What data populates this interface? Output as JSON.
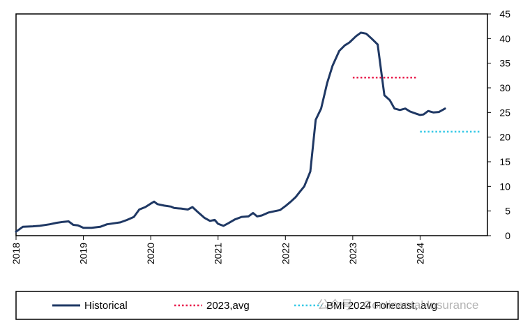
{
  "chart_data": {
    "type": "line",
    "x_ticks": [
      "2018",
      "2019",
      "2020",
      "2021",
      "2022",
      "2023",
      "2024"
    ],
    "y_ticks": [
      "0",
      "5",
      "10",
      "15",
      "20",
      "25",
      "30",
      "35",
      "40",
      "45"
    ],
    "xlim": [
      2018,
      2025
    ],
    "ylim": [
      0,
      45
    ],
    "y_axis_side": "right",
    "grid": false,
    "legend_position": "bottom",
    "series": [
      {
        "name": "Historical",
        "color": "#1f3864",
        "style": "solid",
        "points": [
          [
            2018.0,
            0.8
          ],
          [
            2018.1,
            1.8
          ],
          [
            2018.25,
            1.9
          ],
          [
            2018.35,
            2.0
          ],
          [
            2018.5,
            2.3
          ],
          [
            2018.6,
            2.6
          ],
          [
            2018.7,
            2.8
          ],
          [
            2018.78,
            2.9
          ],
          [
            2018.85,
            2.2
          ],
          [
            2018.92,
            2.1
          ],
          [
            2019.0,
            1.6
          ],
          [
            2019.12,
            1.6
          ],
          [
            2019.25,
            1.8
          ],
          [
            2019.35,
            2.3
          ],
          [
            2019.45,
            2.5
          ],
          [
            2019.55,
            2.7
          ],
          [
            2019.65,
            3.2
          ],
          [
            2019.75,
            3.8
          ],
          [
            2019.83,
            5.3
          ],
          [
            2019.92,
            5.8
          ],
          [
            2020.0,
            6.5
          ],
          [
            2020.05,
            6.9
          ],
          [
            2020.1,
            6.4
          ],
          [
            2020.2,
            6.1
          ],
          [
            2020.3,
            5.9
          ],
          [
            2020.35,
            5.6
          ],
          [
            2020.45,
            5.5
          ],
          [
            2020.55,
            5.3
          ],
          [
            2020.62,
            5.8
          ],
          [
            2020.7,
            4.8
          ],
          [
            2020.8,
            3.6
          ],
          [
            2020.88,
            3.0
          ],
          [
            2020.95,
            3.2
          ],
          [
            2021.0,
            2.4
          ],
          [
            2021.08,
            2.0
          ],
          [
            2021.15,
            2.5
          ],
          [
            2021.25,
            3.3
          ],
          [
            2021.35,
            3.8
          ],
          [
            2021.45,
            3.9
          ],
          [
            2021.52,
            4.6
          ],
          [
            2021.58,
            3.9
          ],
          [
            2021.65,
            4.1
          ],
          [
            2021.75,
            4.7
          ],
          [
            2021.85,
            5.0
          ],
          [
            2021.92,
            5.2
          ],
          [
            2022.0,
            6.0
          ],
          [
            2022.08,
            6.9
          ],
          [
            2022.15,
            7.8
          ],
          [
            2022.22,
            9.0
          ],
          [
            2022.28,
            10.0
          ],
          [
            2022.37,
            13.0
          ],
          [
            2022.45,
            23.5
          ],
          [
            2022.53,
            25.8
          ],
          [
            2022.62,
            31.0
          ],
          [
            2022.7,
            34.5
          ],
          [
            2022.8,
            37.5
          ],
          [
            2022.88,
            38.6
          ],
          [
            2022.95,
            39.2
          ],
          [
            2023.05,
            40.5
          ],
          [
            2023.12,
            41.2
          ],
          [
            2023.2,
            41.0
          ],
          [
            2023.28,
            40.0
          ],
          [
            2023.37,
            38.8
          ],
          [
            2023.47,
            28.5
          ],
          [
            2023.55,
            27.5
          ],
          [
            2023.62,
            25.8
          ],
          [
            2023.7,
            25.5
          ],
          [
            2023.78,
            25.8
          ],
          [
            2023.85,
            25.2
          ],
          [
            2023.93,
            24.8
          ],
          [
            2024.0,
            24.5
          ],
          [
            2024.05,
            24.6
          ],
          [
            2024.12,
            25.3
          ],
          [
            2024.2,
            25.0
          ],
          [
            2024.28,
            25.1
          ],
          [
            2024.37,
            25.8
          ]
        ]
      },
      {
        "name": "2023,avg",
        "color": "#e8194a",
        "style": "dotted",
        "points": [
          [
            2023.0,
            32.1
          ],
          [
            2023.95,
            32.1
          ]
        ]
      },
      {
        "name": "BMI 2024 Forecast, avg",
        "color": "#33c8e6",
        "style": "dotted",
        "points": [
          [
            2024.0,
            21.1
          ],
          [
            2024.9,
            21.1
          ]
        ]
      }
    ]
  },
  "watermark": {
    "text": "公众号 · Continental Insurance"
  }
}
